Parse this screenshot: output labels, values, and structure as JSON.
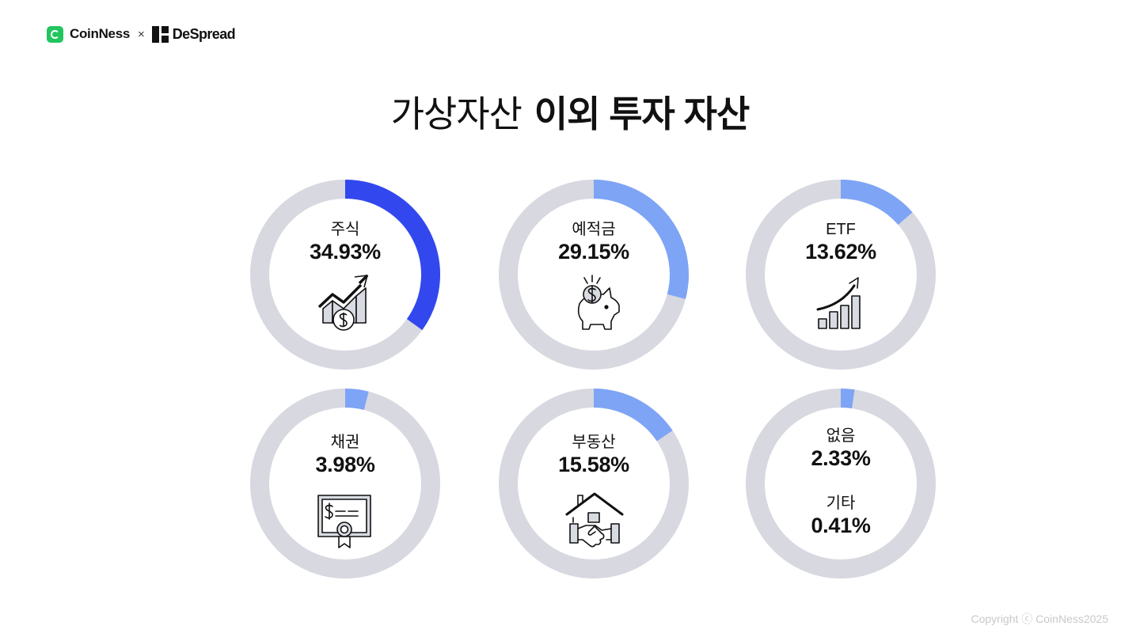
{
  "header": {
    "brand1": "CoinNess",
    "separator": "×",
    "brand2": "DeSpread",
    "brand1_icon": "coinness-logo-icon",
    "brand2_icon": "despread-logo-icon"
  },
  "title": {
    "light": "가상자산",
    "bold": "이외 투자 자산"
  },
  "colors": {
    "track": "#d7d8e0",
    "primary": "#3248ee",
    "secondary": "#7ea4f6"
  },
  "chart_data": {
    "type": "donut",
    "title": "가상자산 이외 투자 자산",
    "unit": "%",
    "items": [
      {
        "label": "주식",
        "value": 34.93,
        "value_label": "34.93%",
        "color": "#3248ee",
        "icon": "stock-growth-dollar-icon"
      },
      {
        "label": "예적금",
        "value": 29.15,
        "value_label": "29.15%",
        "color": "#7ea4f6",
        "icon": "piggy-bank-icon"
      },
      {
        "label": "ETF",
        "value": 13.62,
        "value_label": "13.62%",
        "color": "#7ea4f6",
        "icon": "bar-chart-arrow-icon"
      },
      {
        "label": "채권",
        "value": 3.98,
        "value_label": "3.98%",
        "color": "#7ea4f6",
        "icon": "bond-certificate-icon"
      },
      {
        "label": "부동산",
        "value": 15.58,
        "value_label": "15.58%",
        "color": "#7ea4f6",
        "icon": "house-handshake-icon"
      },
      {
        "label": "없음",
        "value": 2.33,
        "value_label": "2.33%",
        "color": "#7ea4f6"
      },
      {
        "label": "기타",
        "value": 0.41,
        "value_label": "0.41%"
      }
    ]
  },
  "footer": {
    "copyright": "Copyright ⓒ CoinNess2025"
  }
}
